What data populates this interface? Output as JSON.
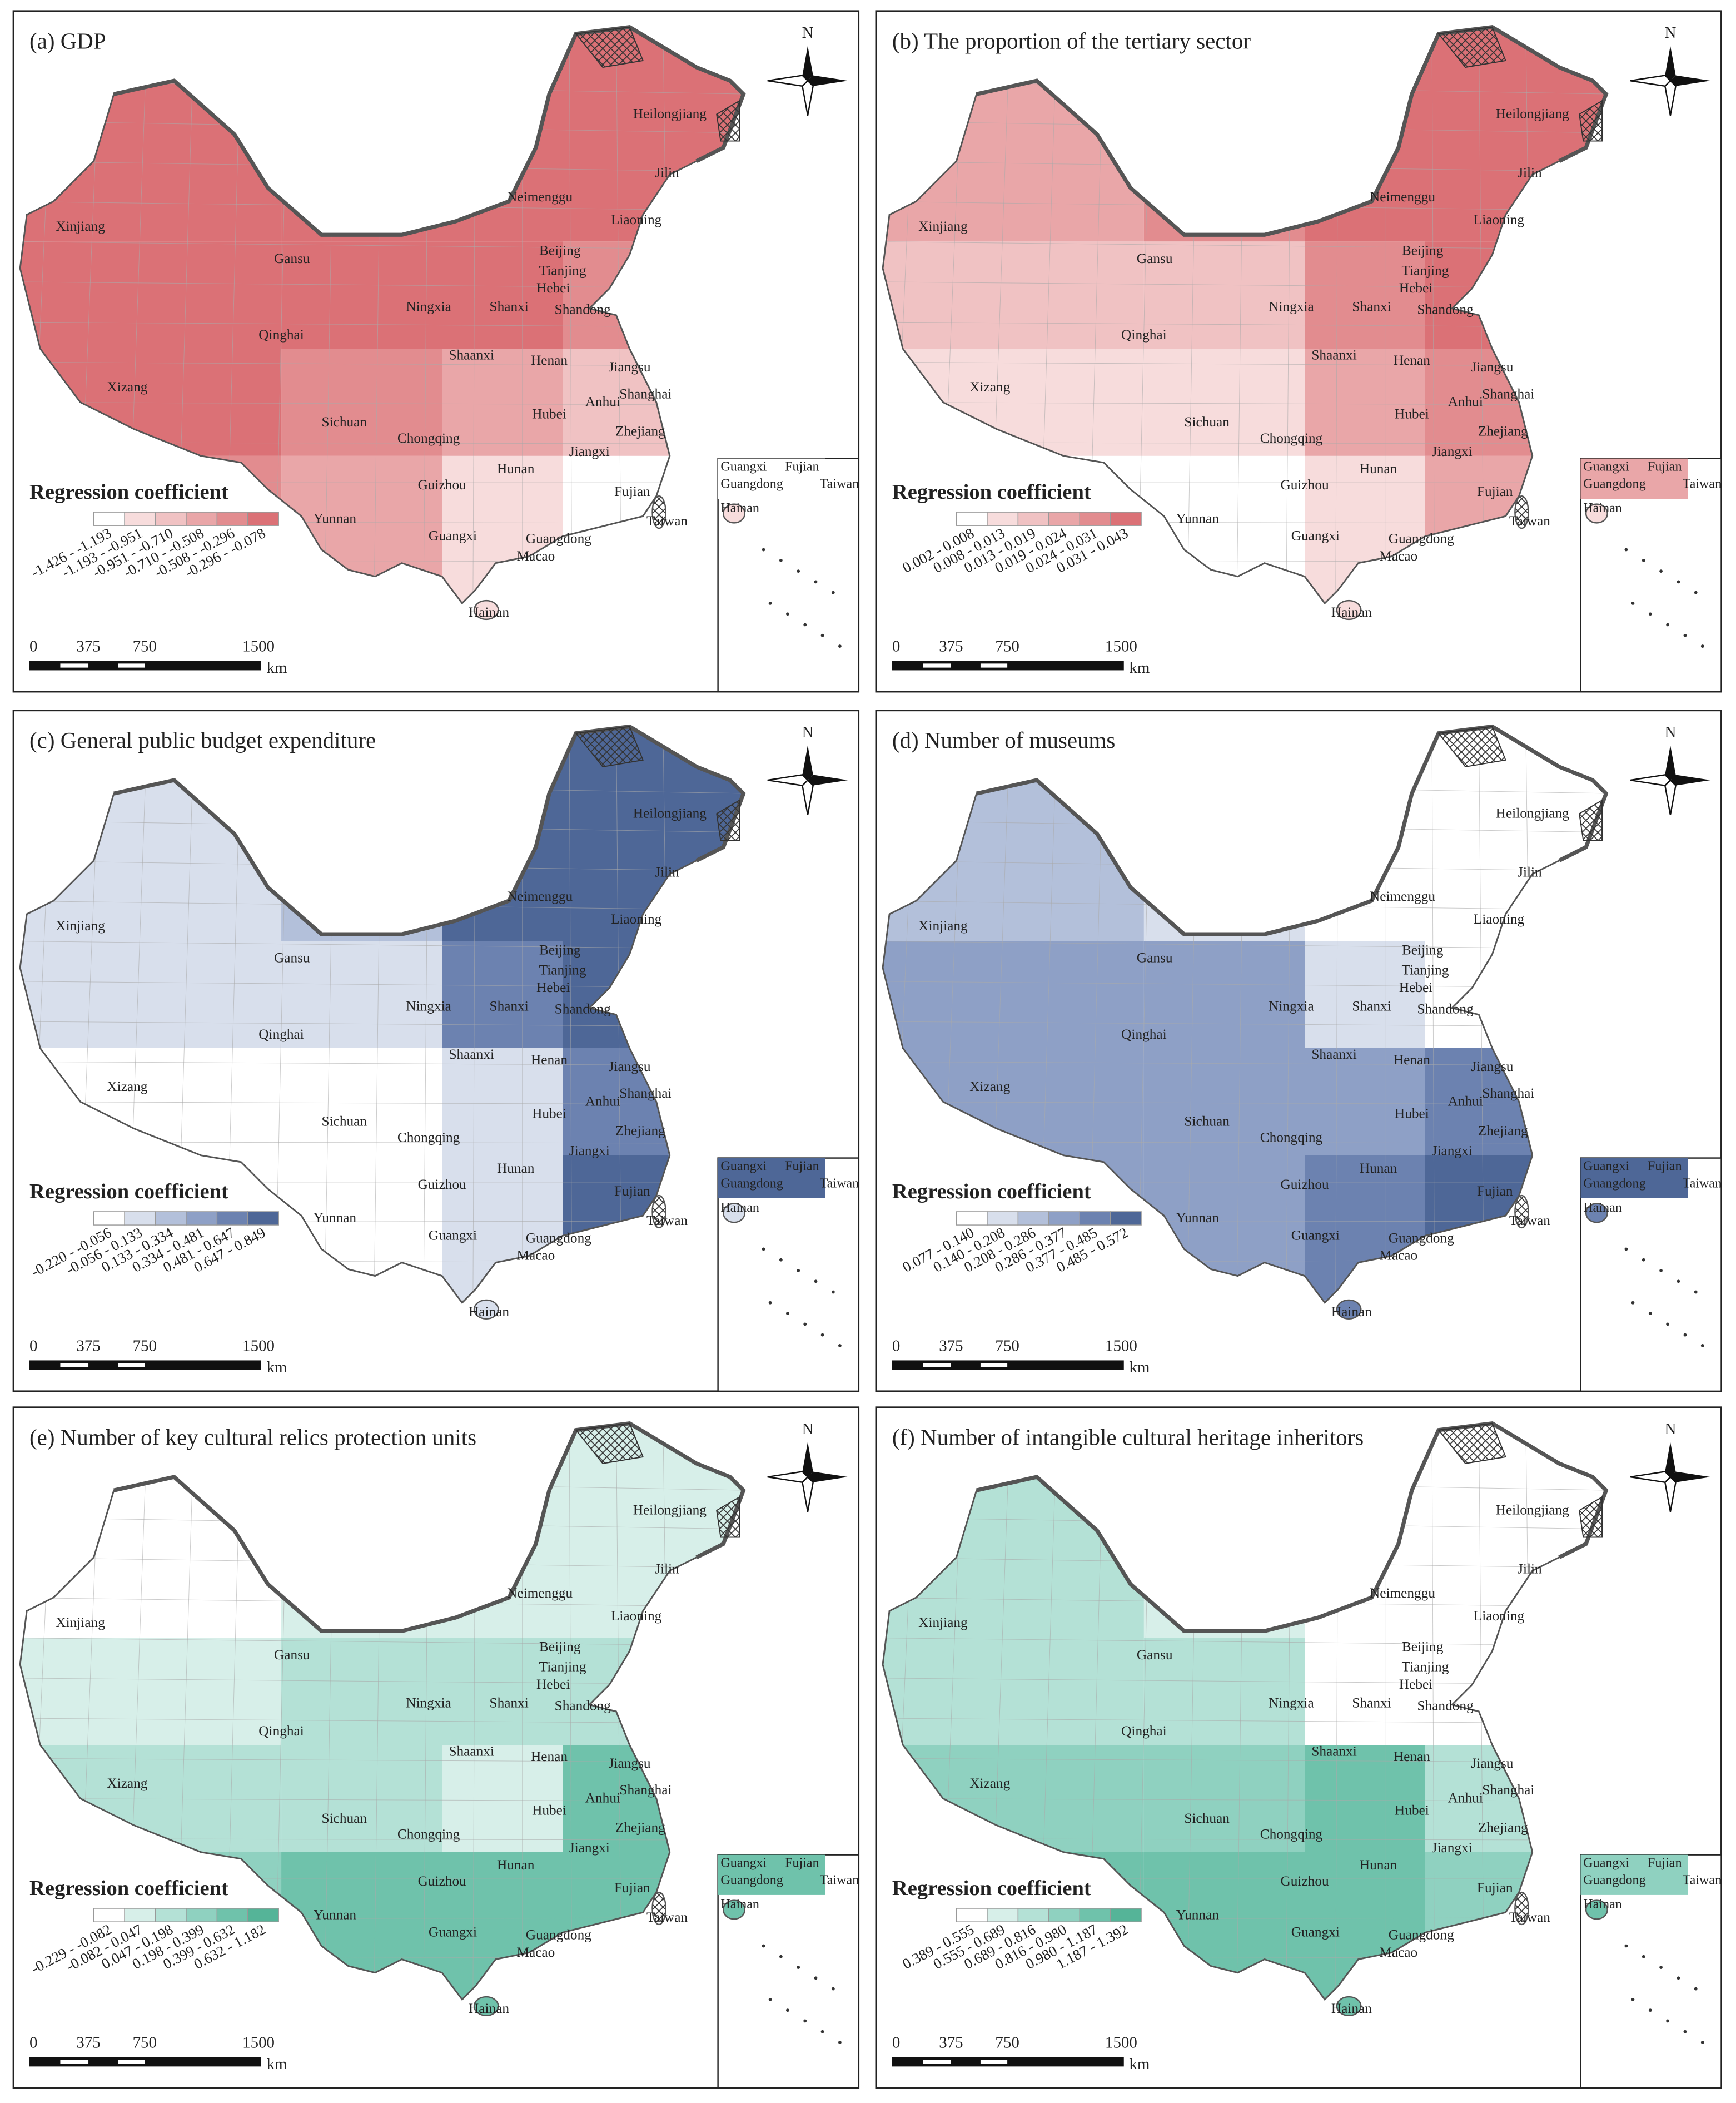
{
  "common": {
    "legend_title": "Regression coefficient",
    "north": "N",
    "scale": [
      "0",
      "375",
      "750",
      "1500"
    ],
    "scale_unit": "km",
    "provinces": [
      "Heilongjiang",
      "Jilin",
      "Liaoning",
      "Neimenggu",
      "Xinjiang",
      "Gansu",
      "Beijing",
      "Tianjing",
      "Hebei",
      "Ningxia",
      "Shanxi",
      "Shandong",
      "Qinghai",
      "Shaanxi",
      "Henan",
      "Jiangsu",
      "Shanghai",
      "Anhui",
      "Xizang",
      "Sichuan",
      "Hubei",
      "Zhejiang",
      "Chongqing",
      "Jiangxi",
      "Hunan",
      "Fujian",
      "Guizhou",
      "Yunnan",
      "Guangxi",
      "Guangdong",
      "Macao",
      "Taiwan",
      "Hainan"
    ],
    "inset_labels": [
      "Guangxi",
      "Fujian",
      "Guangdong",
      "Taiwan",
      "Hainan"
    ]
  },
  "panels": [
    {
      "title": "(a) GDP",
      "colors": [
        "#ffffff",
        "#f7dcdc",
        "#f0c2c3",
        "#e9a6a8",
        "#e28c8f",
        "#db7176"
      ],
      "classes": [
        "-1.426 - -1.193",
        "-1.193 - -0.951",
        "-0.951 - -0.710",
        "-0.710 - -0.508",
        "-0.508 - -0.296",
        "-0.296 - -0.078"
      ]
    },
    {
      "title": "(b) The proportion of the tertiary sector",
      "colors": [
        "#ffffff",
        "#f7dcdc",
        "#f0c2c3",
        "#e9a6a8",
        "#e28c8f",
        "#db7176"
      ],
      "classes": [
        "0.002 - 0.008",
        "0.008 - 0.013",
        "0.013 - 0.019",
        "0.019 - 0.024",
        "0.024 - 0.031",
        "0.031 - 0.043"
      ]
    },
    {
      "title": "(c) General public budget expenditure",
      "colors": [
        "#ffffff",
        "#d8dfec",
        "#b3c0da",
        "#8ea0c6",
        "#6c82b0",
        "#4e6797"
      ],
      "classes": [
        "-0.220 - -0.056",
        "-0.056 - 0.133",
        "0.133 - 0.334",
        "0.334 - 0.481",
        "0.481 - 0.647",
        "0.647 - 0.849"
      ]
    },
    {
      "title": "(d) Number of museums",
      "colors": [
        "#ffffff",
        "#d8dfec",
        "#b3c0da",
        "#8ea0c6",
        "#6c82b0",
        "#4e6797"
      ],
      "classes": [
        "0.077 - 0.140",
        "0.140 - 0.208",
        "0.208 - 0.286",
        "0.286 - 0.377",
        "0.377 - 0.485",
        "0.485 - 0.572"
      ]
    },
    {
      "title": "(e) Number of key cultural relics protection units",
      "colors": [
        "#ffffff",
        "#d7efe9",
        "#b4e1d6",
        "#8fd1c0",
        "#6fc2ab",
        "#55b498"
      ],
      "classes": [
        "-0.229 - -0.082",
        "-0.082 - 0.047",
        "0.047 - 0.198",
        "0.198 - 0.399",
        "0.399 - 0.632",
        "0.632 - 1.182"
      ]
    },
    {
      "title": "(f) Number of intangible cultural heritage inheritors",
      "colors": [
        "#ffffff",
        "#d7efe9",
        "#b4e1d6",
        "#8fd1c0",
        "#6fc2ab",
        "#55b498"
      ],
      "classes": [
        "0.389 - 0.555",
        "0.555 - 0.689",
        "0.689 - 0.816",
        "0.816 - 0.980",
        "0.980 - 1.187",
        "1.187 - 1.392"
      ]
    }
  ]
}
